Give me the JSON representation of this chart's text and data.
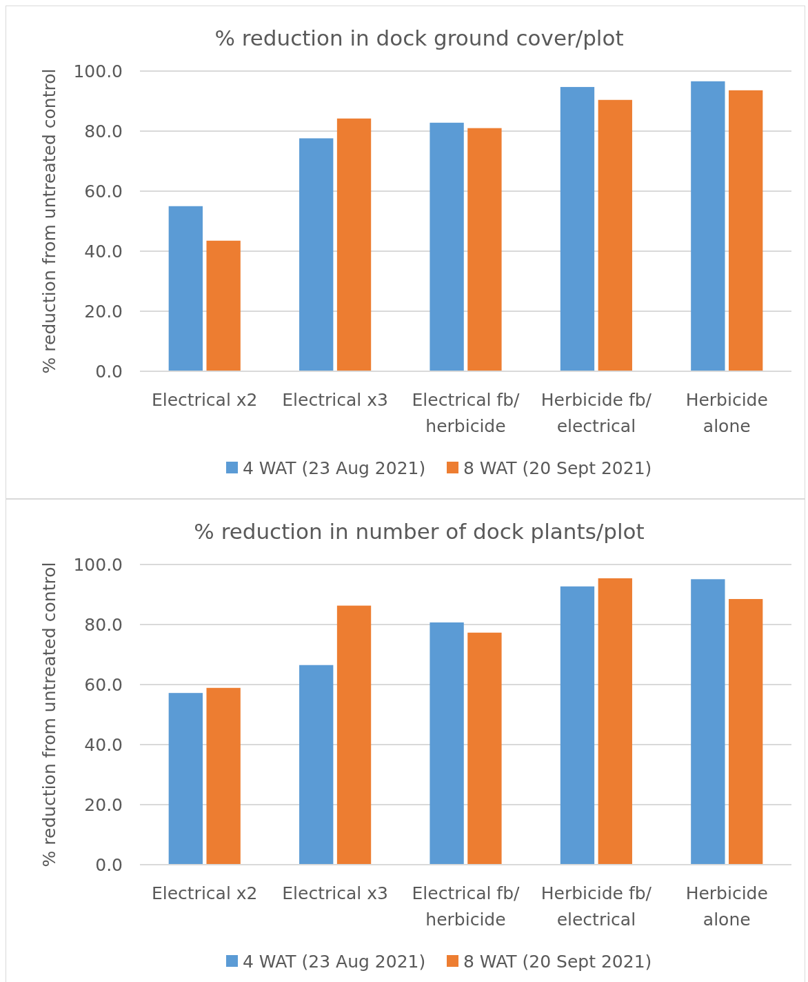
{
  "chart_data": [
    {
      "type": "bar",
      "title": "% reduction in dock ground cover/plot",
      "ylabel": "% reduction from untreated control",
      "categories": [
        "Electrical x2",
        "Electrical x3",
        "Electrical fb/\nherbicide",
        "Herbicide fb/\nelectrical",
        "Herbicide\nalone"
      ],
      "series": [
        {
          "name": "4 WAT (23 Aug 2021)",
          "color": "#5b9bd5",
          "values": [
            55.0,
            77.6,
            82.8,
            94.7,
            96.6
          ]
        },
        {
          "name": "8 WAT (20 Sept 2021)",
          "color": "#ed7d31",
          "values": [
            43.5,
            84.2,
            81.0,
            90.4,
            93.6
          ]
        }
      ],
      "ylim": [
        0,
        100
      ],
      "yticks": [
        {
          "value": 0,
          "label": "0.0"
        },
        {
          "value": 20,
          "label": "20.0"
        },
        {
          "value": 40,
          "label": "40.0"
        },
        {
          "value": 60,
          "label": "60.0"
        },
        {
          "value": 80,
          "label": "80.0"
        },
        {
          "value": 100,
          "label": "100.0"
        }
      ],
      "grid": "y",
      "legend": "bottom"
    },
    {
      "type": "bar",
      "title": "% reduction in number of dock plants/plot",
      "ylabel": "% reduction from untreated control",
      "categories": [
        "Electrical x2",
        "Electrical x3",
        "Electrical fb/\nherbicide",
        "Herbicide fb/\nelectrical",
        "Herbicide\nalone"
      ],
      "series": [
        {
          "name": "4 WAT (23 Aug 2021)",
          "color": "#5b9bd5",
          "values": [
            57.2,
            66.5,
            80.7,
            92.7,
            95.1
          ]
        },
        {
          "name": "8 WAT (20 Sept 2021)",
          "color": "#ed7d31",
          "values": [
            58.9,
            86.3,
            77.3,
            95.4,
            88.5
          ]
        }
      ],
      "ylim": [
        0,
        100
      ],
      "yticks": [
        {
          "value": 0,
          "label": "0.0"
        },
        {
          "value": 20,
          "label": "20.0"
        },
        {
          "value": 40,
          "label": "40.0"
        },
        {
          "value": 60,
          "label": "60.0"
        },
        {
          "value": 80,
          "label": "80.0"
        },
        {
          "value": 100,
          "label": "100.0"
        }
      ],
      "grid": "y",
      "legend": "bottom"
    }
  ]
}
